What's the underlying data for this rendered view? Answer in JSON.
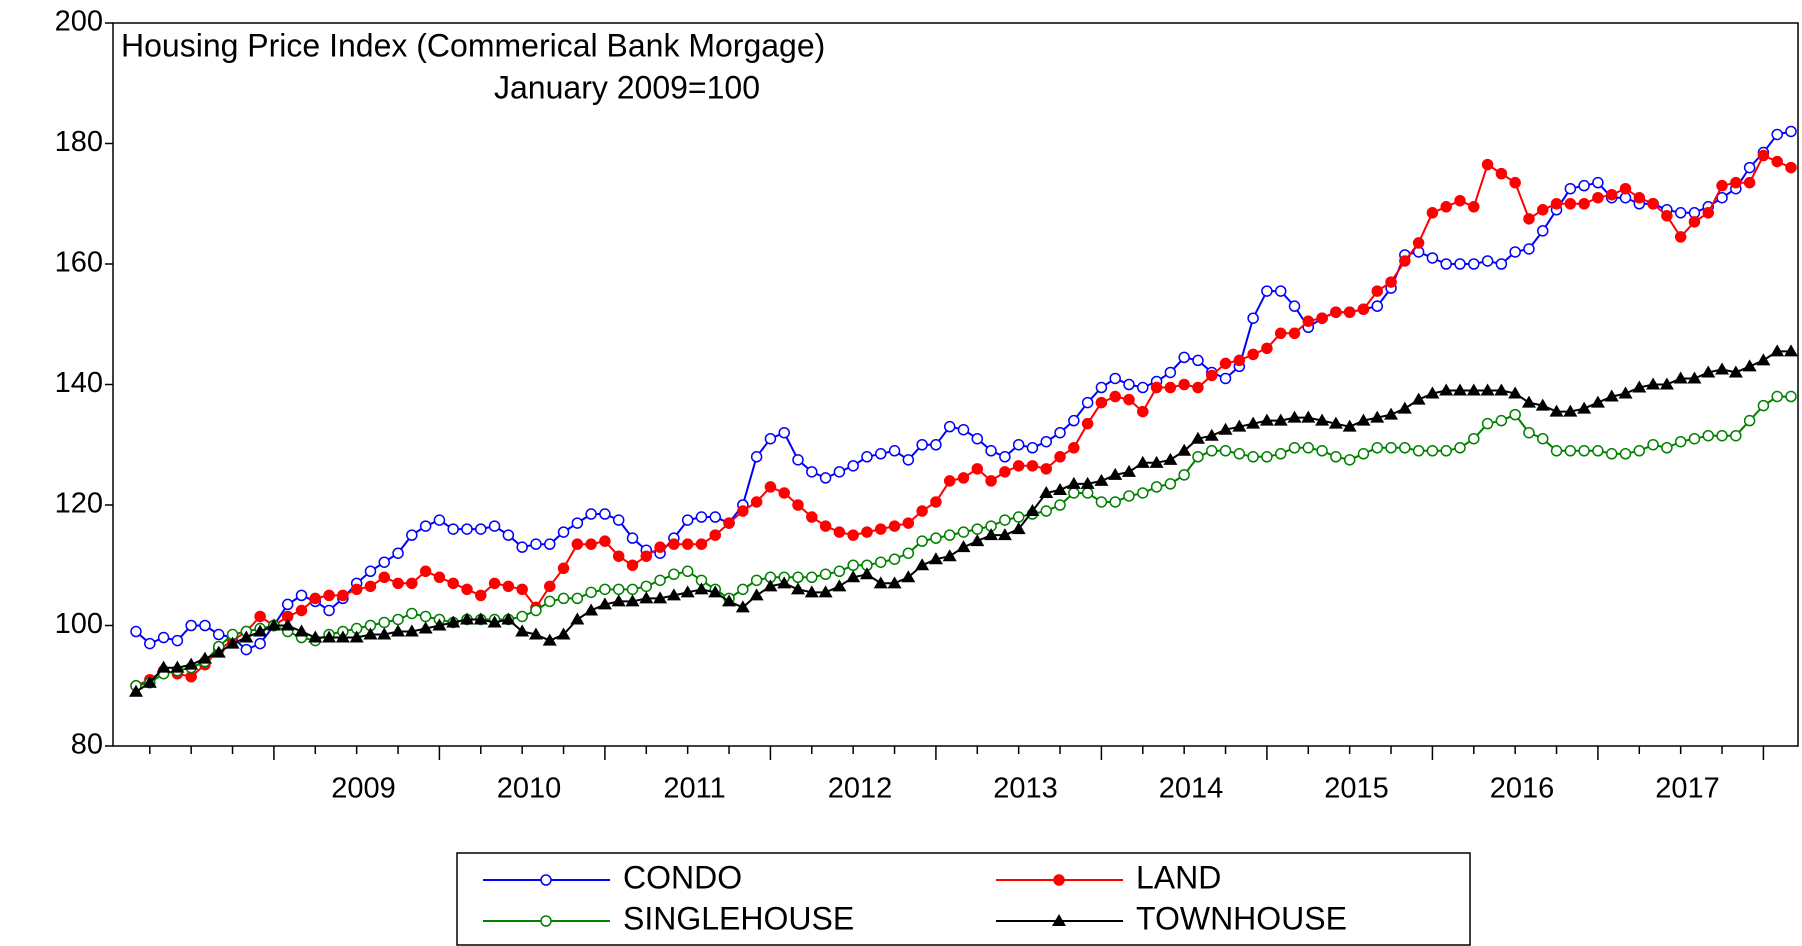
{
  "chart_data": {
    "type": "line",
    "title": "Housing Price Index (Commerical Bank Morgage)",
    "subtitle": "January 2009=100",
    "categories": [
      null,
      null,
      null,
      null,
      null,
      null,
      null,
      null,
      null,
      null,
      null,
      null,
      null,
      null,
      null,
      null,
      "2009",
      null,
      null,
      null,
      null,
      null,
      null,
      null,
      null,
      null,
      null,
      null,
      "2010",
      null,
      null,
      null,
      null,
      null,
      null,
      null,
      null,
      null,
      null,
      null,
      "2011",
      null,
      null,
      null,
      null,
      null,
      null,
      null,
      null,
      null,
      null,
      null,
      "2012",
      null,
      null,
      null,
      null,
      null,
      null,
      null,
      null,
      null,
      null,
      null,
      "2013",
      null,
      null,
      null,
      null,
      null,
      null,
      null,
      null,
      null,
      null,
      null,
      "2014",
      null,
      null,
      null,
      null,
      null,
      null,
      null,
      null,
      null,
      null,
      null,
      "2015",
      null,
      null,
      null,
      null,
      null,
      null,
      null,
      null,
      null,
      null,
      null,
      "2016",
      null,
      null,
      null,
      null,
      null,
      null,
      null,
      null,
      null,
      null,
      null,
      "2017",
      null,
      null,
      null,
      null,
      null,
      null,
      null,
      null
    ],
    "ylim": [
      80,
      200
    ],
    "yticks": [
      80,
      100,
      120,
      140,
      160,
      180,
      200
    ],
    "grid": false,
    "series": [
      {
        "name": "CONDO",
        "color": "#0000ff",
        "marker": "open-circle",
        "values": [
          99,
          97,
          98,
          97.5,
          100,
          100,
          98.5,
          98,
          96,
          97,
          100,
          103.5,
          105,
          104,
          102.5,
          104.5,
          107,
          109,
          110.5,
          112,
          115,
          116.5,
          117.5,
          116,
          116,
          116,
          116.5,
          115,
          113,
          113.5,
          113.5,
          115.5,
          117,
          118.5,
          118.5,
          117.5,
          114.5,
          112.5,
          112,
          114.5,
          117.5,
          118,
          118,
          117,
          120,
          128,
          131,
          132,
          127.5,
          125.5,
          124.5,
          125.5,
          126.5,
          128,
          128.5,
          129,
          127.5,
          130,
          130,
          133,
          132.5,
          131,
          129,
          128,
          130,
          129.5,
          130.5,
          132,
          134,
          137,
          139.5,
          141,
          140,
          139.5,
          140.5,
          142,
          144.5,
          144,
          142,
          141,
          143,
          151,
          155.5,
          155.5,
          153,
          149.5,
          151,
          152,
          152,
          152.5,
          153,
          156,
          161.5,
          162,
          161,
          160,
          160,
          160,
          160.5,
          160,
          162,
          162.5,
          165.5,
          169,
          172.5,
          173,
          173.5,
          171,
          171,
          170,
          170,
          169,
          168.5,
          168.5,
          169.5,
          171,
          172.5,
          176,
          178.5,
          181.5,
          182
        ]
      },
      {
        "name": "LAND",
        "color": "#ff0000",
        "marker": "filled-circle",
        "values": [
          90,
          91,
          92.5,
          92,
          91.5,
          93.5,
          96,
          97.5,
          99,
          101.5,
          100,
          101.5,
          102.5,
          104.5,
          105,
          105,
          106,
          106.5,
          108,
          107,
          107,
          109,
          108,
          107,
          106,
          105,
          107,
          106.5,
          106,
          103,
          106.5,
          109.5,
          113.5,
          113.5,
          114,
          111.5,
          110,
          111.5,
          113,
          113.5,
          113.5,
          113.5,
          115,
          117,
          119,
          120.5,
          123,
          122,
          120,
          118,
          116.5,
          115.5,
          115,
          115.5,
          116,
          116.5,
          117,
          119,
          120.5,
          124,
          124.5,
          126,
          124,
          125.5,
          126.5,
          126.5,
          126,
          128,
          129.5,
          133.5,
          137,
          138,
          137.5,
          135.5,
          139.5,
          139.5,
          140,
          139.5,
          141.5,
          143.5,
          144,
          145,
          146,
          148.5,
          148.5,
          150.5,
          151,
          152,
          152,
          152.5,
          155.5,
          157,
          160.5,
          163.5,
          168.5,
          169.5,
          170.5,
          169.5,
          176.5,
          175,
          173.5,
          167.5,
          169,
          170,
          170,
          170,
          171,
          171.5,
          172.5,
          171,
          170,
          168,
          164.5,
          167,
          168.5,
          173,
          173.5,
          173.5,
          178,
          177,
          176
        ]
      },
      {
        "name": "SINGLEHOUSE",
        "color": "#008000",
        "marker": "open-circle",
        "values": [
          90,
          90.5,
          92,
          92.5,
          93,
          94,
          96.5,
          98.5,
          99,
          99.5,
          100,
          99,
          98,
          97.5,
          98.5,
          99,
          99.5,
          100,
          100.5,
          101,
          102,
          101.5,
          101,
          100.5,
          101,
          101,
          101,
          101,
          101.5,
          102.5,
          104,
          104.5,
          104.5,
          105.5,
          106,
          106,
          106,
          106.5,
          107.5,
          108.5,
          109,
          107.5,
          106,
          104.5,
          106,
          107.5,
          108,
          108,
          108,
          108,
          108.5,
          109,
          110,
          110,
          110.5,
          111,
          112,
          114,
          114.5,
          115,
          115.5,
          116,
          116.5,
          117.5,
          118,
          118.5,
          119,
          120,
          122,
          122,
          120.5,
          120.5,
          121.5,
          122,
          123,
          123.5,
          125,
          128,
          129,
          129,
          128.5,
          128,
          128,
          128.5,
          129.5,
          129.5,
          129,
          128,
          127.5,
          128.5,
          129.5,
          129.5,
          129.5,
          129,
          129,
          129,
          129.5,
          131,
          133.5,
          134,
          135,
          132,
          131,
          129,
          129,
          129,
          129,
          128.5,
          128.5,
          129,
          130,
          129.5,
          130.5,
          131,
          131.5,
          131.5,
          131.5,
          134,
          136.5,
          138,
          138
        ]
      },
      {
        "name": "TOWNHOUSE",
        "color": "#000000",
        "marker": "triangle",
        "values": [
          89,
          90.5,
          93,
          93,
          93.5,
          94.5,
          95.5,
          97,
          98,
          99,
          100,
          100,
          99,
          98,
          98,
          98,
          98,
          98.5,
          98.5,
          99,
          99,
          99.5,
          100,
          100.5,
          101,
          101,
          100.5,
          101,
          99,
          98.5,
          97.5,
          98.5,
          101,
          102.5,
          103.5,
          104,
          104,
          104.5,
          104.5,
          105,
          105.5,
          106,
          105.5,
          104,
          103,
          105,
          106.5,
          107,
          106,
          105.5,
          105.5,
          106.5,
          108,
          108.5,
          107,
          107,
          108,
          110,
          111,
          111.5,
          113,
          114,
          115,
          115,
          116,
          119,
          122,
          122.5,
          123.5,
          123.5,
          124,
          125,
          125.5,
          127,
          127,
          127.5,
          129,
          131,
          131.5,
          132.5,
          133,
          133.5,
          134,
          134,
          134.5,
          134.5,
          134,
          133.5,
          133,
          134,
          134.5,
          135,
          136,
          137.5,
          138.5,
          139,
          139,
          139,
          139,
          139,
          138.5,
          137,
          136.5,
          135.5,
          135.5,
          136,
          137,
          138,
          138.5,
          139.5,
          140,
          140,
          141,
          141,
          142,
          142.5,
          142,
          143,
          144,
          145.5,
          145.5
        ]
      }
    ]
  }
}
